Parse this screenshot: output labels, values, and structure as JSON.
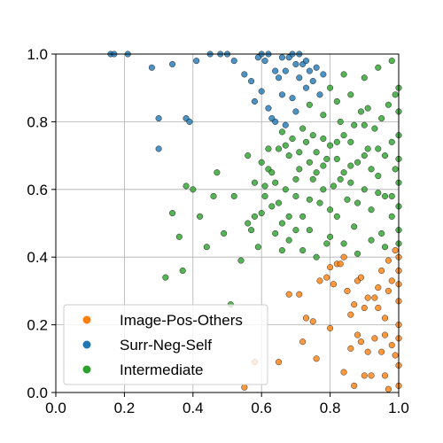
{
  "chart_data": {
    "type": "scatter",
    "title": "",
    "xlabel": "",
    "ylabel": "",
    "xlim": [
      0.0,
      1.0
    ],
    "ylim": [
      0.0,
      1.0
    ],
    "grid": true,
    "legend_position": "lower-left",
    "xticks": [
      "0.0",
      "0.2",
      "0.4",
      "0.6",
      "0.8",
      "1.0"
    ],
    "yticks": [
      "0.0",
      "0.2",
      "0.4",
      "0.6",
      "0.8",
      "1.0"
    ],
    "series": [
      {
        "name": "Image-Pos-Others",
        "color": "#ff7f0e",
        "points": [
          [
            0.55,
            0.015
          ],
          [
            0.58,
            0.09
          ],
          [
            0.65,
            0.09
          ],
          [
            0.68,
            0.29
          ],
          [
            0.71,
            0.29
          ],
          [
            0.73,
            0.22
          ],
          [
            0.75,
            0.21
          ],
          [
            0.77,
            0.33
          ],
          [
            0.79,
            0.34
          ],
          [
            0.8,
            0.37
          ],
          [
            0.81,
            0.32
          ],
          [
            0.82,
            0.38
          ],
          [
            0.83,
            0.38
          ],
          [
            0.84,
            0.4
          ],
          [
            0.85,
            0.3
          ],
          [
            0.86,
            0.23
          ],
          [
            0.87,
            0.26
          ],
          [
            0.87,
            0.02
          ],
          [
            0.88,
            0.17
          ],
          [
            0.88,
            0.33
          ],
          [
            0.89,
            0.15
          ],
          [
            0.9,
            0.25
          ],
          [
            0.91,
            0.28
          ],
          [
            0.92,
            0.05
          ],
          [
            0.93,
            0.28
          ],
          [
            0.94,
            0.25
          ],
          [
            0.95,
            0.12
          ],
          [
            0.95,
            0.36
          ],
          [
            0.96,
            0.05
          ],
          [
            0.96,
            0.22
          ],
          [
            0.97,
            0.3
          ],
          [
            0.97,
            0.39
          ],
          [
            0.98,
            0.14
          ],
          [
            0.98,
            0.33
          ],
          [
            0.99,
            0.11
          ],
          [
            0.99,
            0.42
          ],
          [
            1.0,
            0.02
          ],
          [
            1.0,
            0.08
          ],
          [
            1.0,
            0.16
          ],
          [
            1.0,
            0.2
          ],
          [
            1.0,
            0.27
          ],
          [
            1.0,
            0.32
          ],
          [
            1.0,
            0.36
          ],
          [
            1.0,
            0.4
          ],
          [
            0.8,
            0.19
          ],
          [
            0.84,
            0.06
          ],
          [
            0.9,
            0.05
          ],
          [
            0.93,
            0.16
          ],
          [
            0.97,
            0.01
          ],
          [
            0.72,
            0.15
          ],
          [
            0.76,
            0.1
          ],
          [
            0.86,
            0.13
          ],
          [
            0.89,
            0.34
          ],
          [
            0.91,
            0.12
          ],
          [
            0.94,
            0.31
          ],
          [
            0.96,
            0.17
          ]
        ]
      },
      {
        "name": "Surr-Neg-Self",
        "color": "#1f77b4",
        "points": [
          [
            0.16,
            1.0
          ],
          [
            0.17,
            1.0
          ],
          [
            0.21,
            1.0
          ],
          [
            0.28,
            0.96
          ],
          [
            0.3,
            0.81
          ],
          [
            0.3,
            0.72
          ],
          [
            0.34,
            0.97
          ],
          [
            0.38,
            0.81
          ],
          [
            0.39,
            0.8
          ],
          [
            0.41,
            0.98
          ],
          [
            0.45,
            1.0
          ],
          [
            0.48,
            1.0
          ],
          [
            0.5,
            1.0
          ],
          [
            0.52,
            0.98
          ],
          [
            0.55,
            0.94
          ],
          [
            0.57,
            0.92
          ],
          [
            0.58,
            0.86
          ],
          [
            0.6,
            0.89
          ],
          [
            0.61,
            0.98
          ],
          [
            0.62,
            1.0
          ],
          [
            0.63,
            0.81
          ],
          [
            0.64,
            0.95
          ],
          [
            0.65,
            0.93
          ],
          [
            0.66,
            0.88
          ],
          [
            0.67,
            0.95
          ],
          [
            0.68,
            0.99
          ],
          [
            0.69,
            1.0
          ],
          [
            0.7,
            0.97
          ],
          [
            0.71,
            0.93
          ],
          [
            0.72,
            0.97
          ],
          [
            0.73,
            0.9
          ],
          [
            0.74,
            0.95
          ],
          [
            0.75,
            0.92
          ],
          [
            0.76,
            0.96
          ],
          [
            0.77,
            0.88
          ],
          [
            0.78,
            0.94
          ],
          [
            0.62,
            0.84
          ],
          [
            0.64,
            0.8
          ],
          [
            0.67,
            0.79
          ],
          [
            0.7,
            0.83
          ],
          [
            0.73,
            0.98
          ],
          [
            0.69,
            0.87
          ],
          [
            0.66,
            0.99
          ],
          [
            0.71,
            1.0
          ],
          [
            0.6,
            1.0
          ],
          [
            0.59,
            0.99
          ]
        ]
      },
      {
        "name": "Intermediate",
        "color": "#2ca02c",
        "points": [
          [
            0.32,
            0.34
          ],
          [
            0.34,
            0.53
          ],
          [
            0.36,
            0.46
          ],
          [
            0.37,
            0.36
          ],
          [
            0.38,
            0.61
          ],
          [
            0.4,
            0.6
          ],
          [
            0.42,
            0.52
          ],
          [
            0.44,
            0.43
          ],
          [
            0.46,
            0.58
          ],
          [
            0.47,
            0.65
          ],
          [
            0.49,
            0.47
          ],
          [
            0.51,
            0.26
          ],
          [
            0.52,
            0.58
          ],
          [
            0.54,
            0.39
          ],
          [
            0.56,
            0.5
          ],
          [
            0.57,
            0.48
          ],
          [
            0.58,
            0.52
          ],
          [
            0.59,
            0.43
          ],
          [
            0.6,
            0.68
          ],
          [
            0.61,
            0.58
          ],
          [
            0.62,
            0.66
          ],
          [
            0.63,
            0.55
          ],
          [
            0.64,
            0.62
          ],
          [
            0.65,
            0.72
          ],
          [
            0.66,
            0.5
          ],
          [
            0.67,
            0.6
          ],
          [
            0.68,
            0.45
          ],
          [
            0.69,
            0.75
          ],
          [
            0.7,
            0.58
          ],
          [
            0.71,
            0.66
          ],
          [
            0.72,
            0.52
          ],
          [
            0.73,
            0.74
          ],
          [
            0.74,
            0.48
          ],
          [
            0.75,
            0.63
          ],
          [
            0.76,
            0.71
          ],
          [
            0.77,
            0.56
          ],
          [
            0.78,
            0.67
          ],
          [
            0.79,
            0.44
          ],
          [
            0.8,
            0.73
          ],
          [
            0.81,
            0.61
          ],
          [
            0.82,
            0.52
          ],
          [
            0.83,
            0.8
          ],
          [
            0.84,
            0.65
          ],
          [
            0.85,
            0.57
          ],
          [
            0.86,
            0.74
          ],
          [
            0.87,
            0.49
          ],
          [
            0.88,
            0.68
          ],
          [
            0.89,
            0.83
          ],
          [
            0.9,
            0.6
          ],
          [
            0.91,
            0.72
          ],
          [
            0.92,
            0.54
          ],
          [
            0.93,
            0.78
          ],
          [
            0.94,
            0.64
          ],
          [
            0.95,
            0.47
          ],
          [
            0.96,
            0.7
          ],
          [
            0.97,
            0.85
          ],
          [
            0.98,
            0.58
          ],
          [
            0.99,
            0.66
          ],
          [
            1.0,
            0.55
          ],
          [
            1.0,
            0.62
          ],
          [
            1.0,
            0.69
          ],
          [
            1.0,
            0.76
          ],
          [
            1.0,
            0.83
          ],
          [
            1.0,
            0.9
          ],
          [
            1.0,
            0.48
          ],
          [
            1.0,
            0.44
          ],
          [
            0.66,
            0.77
          ],
          [
            0.68,
            0.7
          ],
          [
            0.7,
            0.63
          ],
          [
            0.72,
            0.78
          ],
          [
            0.74,
            0.57
          ],
          [
            0.76,
            0.65
          ],
          [
            0.78,
            0.75
          ],
          [
            0.8,
            0.54
          ],
          [
            0.82,
            0.69
          ],
          [
            0.84,
            0.76
          ],
          [
            0.86,
            0.62
          ],
          [
            0.88,
            0.56
          ],
          [
            0.9,
            0.79
          ],
          [
            0.92,
            0.66
          ],
          [
            0.94,
            0.72
          ],
          [
            0.96,
            0.58
          ],
          [
            0.98,
            0.74
          ],
          [
            0.74,
            0.85
          ],
          [
            0.78,
            0.82
          ],
          [
            0.82,
            0.86
          ],
          [
            0.86,
            0.88
          ],
          [
            0.9,
            0.93
          ],
          [
            0.94,
            0.96
          ],
          [
            0.98,
            0.98
          ],
          [
            0.8,
            0.9
          ],
          [
            0.84,
            0.94
          ],
          [
            0.62,
            0.72
          ],
          [
            0.64,
            0.47
          ],
          [
            0.6,
            0.53
          ],
          [
            0.58,
            0.62
          ],
          [
            0.56,
            0.7
          ],
          [
            0.7,
            0.48
          ],
          [
            0.72,
            0.42
          ],
          [
            0.76,
            0.4
          ],
          [
            0.8,
            0.46
          ],
          [
            0.84,
            0.44
          ],
          [
            0.88,
            0.41
          ],
          [
            0.92,
            0.45
          ],
          [
            0.96,
            0.43
          ],
          [
            0.66,
            0.42
          ],
          [
            0.68,
            0.52
          ],
          [
            0.74,
            0.68
          ],
          [
            0.78,
            0.6
          ],
          [
            0.82,
            0.74
          ],
          [
            0.86,
            0.67
          ],
          [
            0.9,
            0.7
          ],
          [
            0.94,
            0.59
          ],
          [
            0.98,
            0.52
          ],
          [
            0.63,
            0.65
          ],
          [
            0.67,
            0.73
          ],
          [
            0.71,
            0.71
          ],
          [
            0.75,
            0.76
          ],
          [
            0.79,
            0.69
          ],
          [
            0.83,
            0.63
          ],
          [
            0.87,
            0.79
          ],
          [
            0.91,
            0.84
          ],
          [
            0.95,
            0.81
          ],
          [
            0.99,
            0.88
          ],
          [
            0.61,
            0.61
          ],
          [
            0.65,
            0.56
          ]
        ]
      }
    ]
  }
}
